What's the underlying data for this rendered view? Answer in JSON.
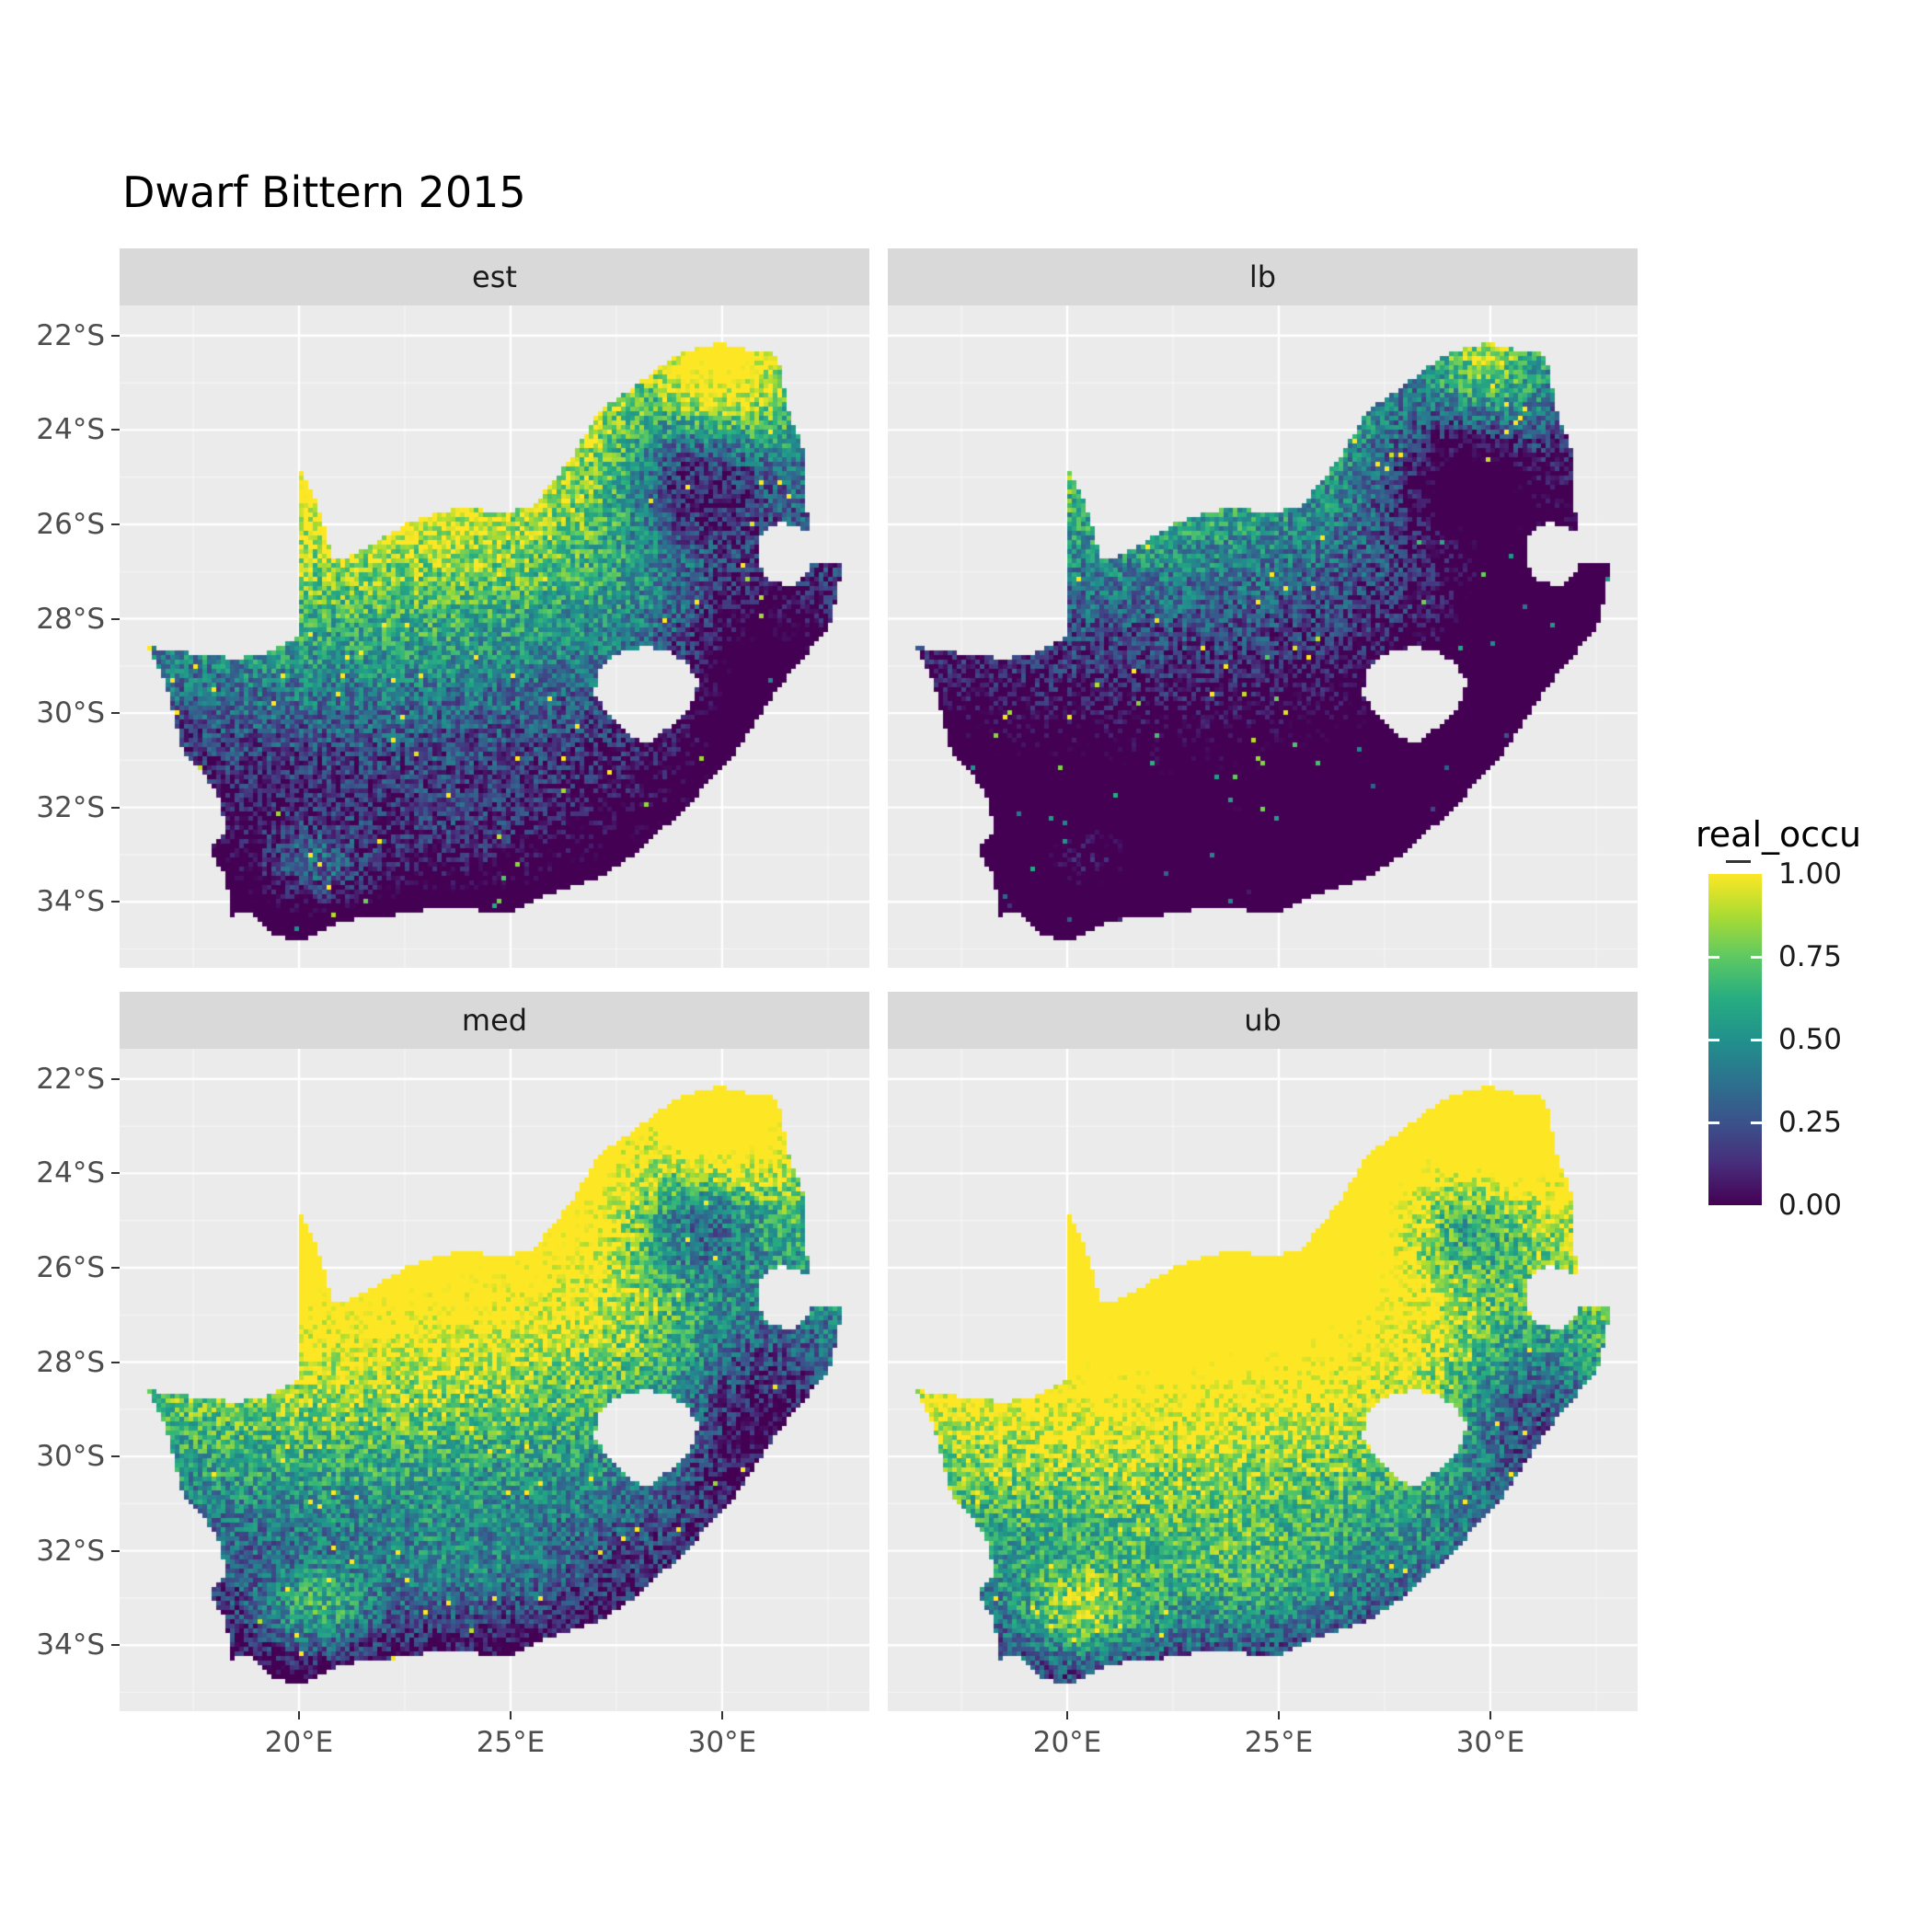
{
  "title": "Dwarf Bittern 2015",
  "legend": {
    "title": "real_occu",
    "labels": [
      "1.00",
      "0.75",
      "0.50",
      "0.25",
      "0.00"
    ],
    "label_values": [
      1.0,
      0.75,
      0.5,
      0.25,
      0.0
    ],
    "tick_values": [
      0.75,
      0.5,
      0.25
    ],
    "viridis_stops": [
      {
        "t": 0.0,
        "color": "#440154"
      },
      {
        "t": 0.125,
        "color": "#472d7b"
      },
      {
        "t": 0.25,
        "color": "#3b528b"
      },
      {
        "t": 0.375,
        "color": "#2c728e"
      },
      {
        "t": 0.5,
        "color": "#21918c"
      },
      {
        "t": 0.625,
        "color": "#27ad81"
      },
      {
        "t": 0.75,
        "color": "#5ec962"
      },
      {
        "t": 0.875,
        "color": "#aadc32"
      },
      {
        "t": 1.0,
        "color": "#fde725"
      }
    ]
  },
  "axes": {
    "x_ticks": [
      {
        "value": 20,
        "label": "20°E"
      },
      {
        "value": 25,
        "label": "25°E"
      },
      {
        "value": 30,
        "label": "30°E"
      }
    ],
    "y_ticks": [
      {
        "value": -22,
        "label": "22°S"
      },
      {
        "value": -24,
        "label": "24°S"
      },
      {
        "value": -26,
        "label": "26°S"
      },
      {
        "value": -28,
        "label": "28°S"
      },
      {
        "value": -30,
        "label": "30°S"
      },
      {
        "value": -32,
        "label": "32°S"
      },
      {
        "value": -34,
        "label": "34°S"
      }
    ],
    "x_minor": [
      17.5,
      22.5,
      27.5,
      32.5
    ],
    "y_minor": [
      -23,
      -25,
      -27,
      -29,
      -31,
      -33,
      -35
    ]
  },
  "chart_data": {
    "type": "heatmap",
    "variable": "real_occu",
    "value_range": [
      0,
      1
    ],
    "region": "South Africa",
    "facets": [
      {
        "label": "est",
        "level_offset": 0.0
      },
      {
        "label": "lb",
        "level_offset": -0.38
      },
      {
        "label": "med",
        "level_offset": 0.3
      },
      {
        "label": "ub",
        "level_offset": 0.55
      }
    ],
    "lon_range": [
      15.76,
      33.48
    ],
    "lat_range": [
      -35.4,
      -21.36
    ],
    "south_africa_outline": [
      [
        19.98,
        -24.77
      ],
      [
        20.45,
        -25.6
      ],
      [
        20.7,
        -26.4
      ],
      [
        20.85,
        -26.8
      ],
      [
        21.6,
        -26.5
      ],
      [
        22.6,
        -25.95
      ],
      [
        23.9,
        -25.6
      ],
      [
        24.7,
        -25.8
      ],
      [
        25.55,
        -25.6
      ],
      [
        26.4,
        -24.65
      ],
      [
        27.1,
        -23.6
      ],
      [
        27.95,
        -23.05
      ],
      [
        28.95,
        -22.4
      ],
      [
        29.9,
        -22.15
      ],
      [
        30.65,
        -22.3
      ],
      [
        31.3,
        -22.4
      ],
      [
        31.6,
        -23.7
      ],
      [
        31.95,
        -24.45
      ],
      [
        32.0,
        -25.6
      ],
      [
        32.05,
        -26.15
      ],
      [
        31.35,
        -25.95
      ],
      [
        30.85,
        -26.25
      ],
      [
        30.85,
        -26.85
      ],
      [
        31.15,
        -27.2
      ],
      [
        31.65,
        -27.3
      ],
      [
        31.95,
        -27.05
      ],
      [
        32.1,
        -26.85
      ],
      [
        32.85,
        -26.85
      ],
      [
        32.55,
        -28.15
      ],
      [
        31.35,
        -29.45
      ],
      [
        30.25,
        -30.9
      ],
      [
        29.3,
        -31.85
      ],
      [
        28.1,
        -32.9
      ],
      [
        27.1,
        -33.5
      ],
      [
        25.9,
        -33.85
      ],
      [
        24.9,
        -34.25
      ],
      [
        23.4,
        -34.1
      ],
      [
        22.2,
        -34.3
      ],
      [
        21.0,
        -34.4
      ],
      [
        20.0,
        -34.85
      ],
      [
        19.3,
        -34.65
      ],
      [
        18.8,
        -34.2
      ],
      [
        18.35,
        -34.3
      ],
      [
        18.3,
        -33.5
      ],
      [
        17.85,
        -32.85
      ],
      [
        18.3,
        -32.5
      ],
      [
        18.05,
        -31.65
      ],
      [
        17.25,
        -30.8
      ],
      [
        16.9,
        -29.5
      ],
      [
        16.45,
        -28.6
      ],
      [
        17.6,
        -28.75
      ],
      [
        18.6,
        -28.85
      ],
      [
        19.3,
        -28.7
      ],
      [
        19.98,
        -28.4
      ]
    ],
    "lesotho_hole": [
      [
        27.05,
        -29.1
      ],
      [
        27.45,
        -28.75
      ],
      [
        28.15,
        -28.6
      ],
      [
        28.7,
        -28.65
      ],
      [
        29.15,
        -28.95
      ],
      [
        29.45,
        -29.35
      ],
      [
        29.25,
        -29.85
      ],
      [
        28.85,
        -30.25
      ],
      [
        28.2,
        -30.65
      ],
      [
        27.7,
        -30.4
      ],
      [
        27.3,
        -30.05
      ],
      [
        27.0,
        -29.6
      ]
    ]
  },
  "theme": {
    "panel_bg": "#ebebeb",
    "strip_bg": "#d9d9d9",
    "grid_color": "#ffffff",
    "axis_text_color": "#4d4d4d",
    "tick_color": "#333333",
    "title_color": "#000000"
  }
}
